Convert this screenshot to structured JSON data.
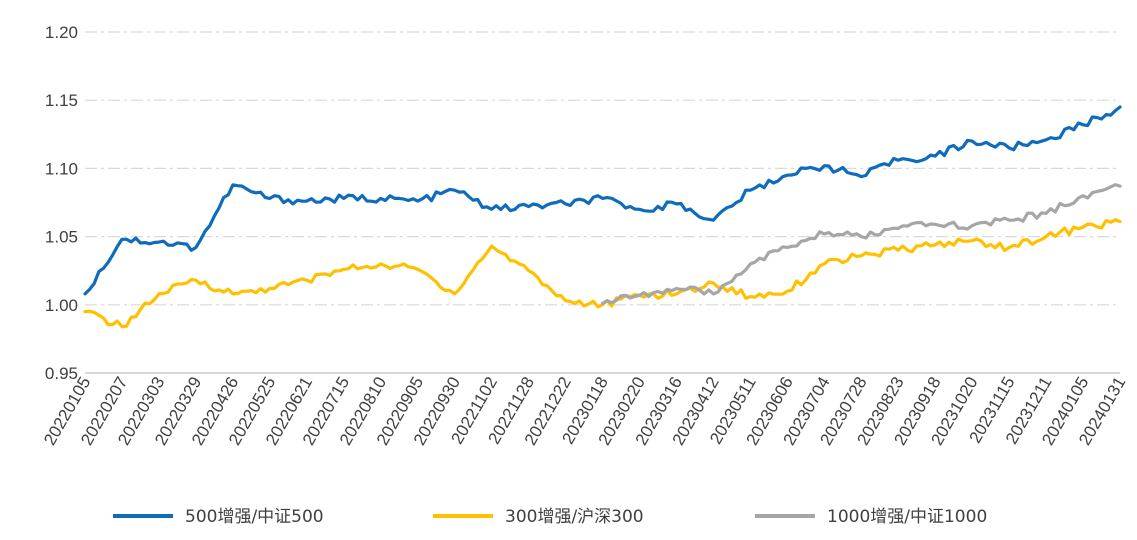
{
  "chart_data": {
    "type": "line",
    "title": "",
    "xlabel": "",
    "ylabel": "",
    "ylim": [
      0.95,
      1.2
    ],
    "yticks": [
      "0.95",
      "1.00",
      "1.05",
      "1.10",
      "1.15",
      "1.20"
    ],
    "grid": "horizontal-dashdot",
    "legend": "bottom",
    "xtick_labels": [
      "20220105",
      "20220207",
      "20220303",
      "20220329",
      "20220426",
      "20220525",
      "20220621",
      "20220715",
      "20220810",
      "20220905",
      "20220930",
      "20221102",
      "20221128",
      "20221222",
      "20230118",
      "20230220",
      "20230316",
      "20230412",
      "20230511",
      "20230606",
      "20230704",
      "20230728",
      "20230823",
      "20230918",
      "20231020",
      "20231115",
      "20231211",
      "20240105",
      "20240131"
    ],
    "series": [
      {
        "name": "500增强/中证500",
        "color": "#0f6cbd",
        "values": [
          1.008,
          1.048,
          1.046,
          1.042,
          1.088,
          1.078,
          1.076,
          1.078,
          1.078,
          1.076,
          1.084,
          1.07,
          1.072,
          1.074,
          1.078,
          1.07,
          1.074,
          1.062,
          1.084,
          1.095,
          1.102,
          1.094,
          1.106,
          1.109,
          1.12,
          1.115,
          1.121,
          1.132,
          1.145
        ]
      },
      {
        "name": "300增强/沪深300",
        "color": "#ffc000",
        "values": [
          0.995,
          0.984,
          1.008,
          1.018,
          1.008,
          1.012,
          1.018,
          1.026,
          1.03,
          1.026,
          1.008,
          1.043,
          1.025,
          1.003,
          1.0,
          1.007,
          1.008,
          1.016,
          1.006,
          1.01,
          1.03,
          1.036,
          1.04,
          1.044,
          1.047,
          1.042,
          1.05,
          1.057,
          1.061
        ]
      },
      {
        "name": "1000增强/中证1000",
        "color": "#a6a6a6",
        "start_index": 14,
        "values": [
          1.001,
          1.007,
          1.012,
          1.008,
          1.03,
          1.042,
          1.052,
          1.05,
          1.056,
          1.059,
          1.058,
          1.062,
          1.067,
          1.08,
          1.087
        ]
      }
    ]
  }
}
